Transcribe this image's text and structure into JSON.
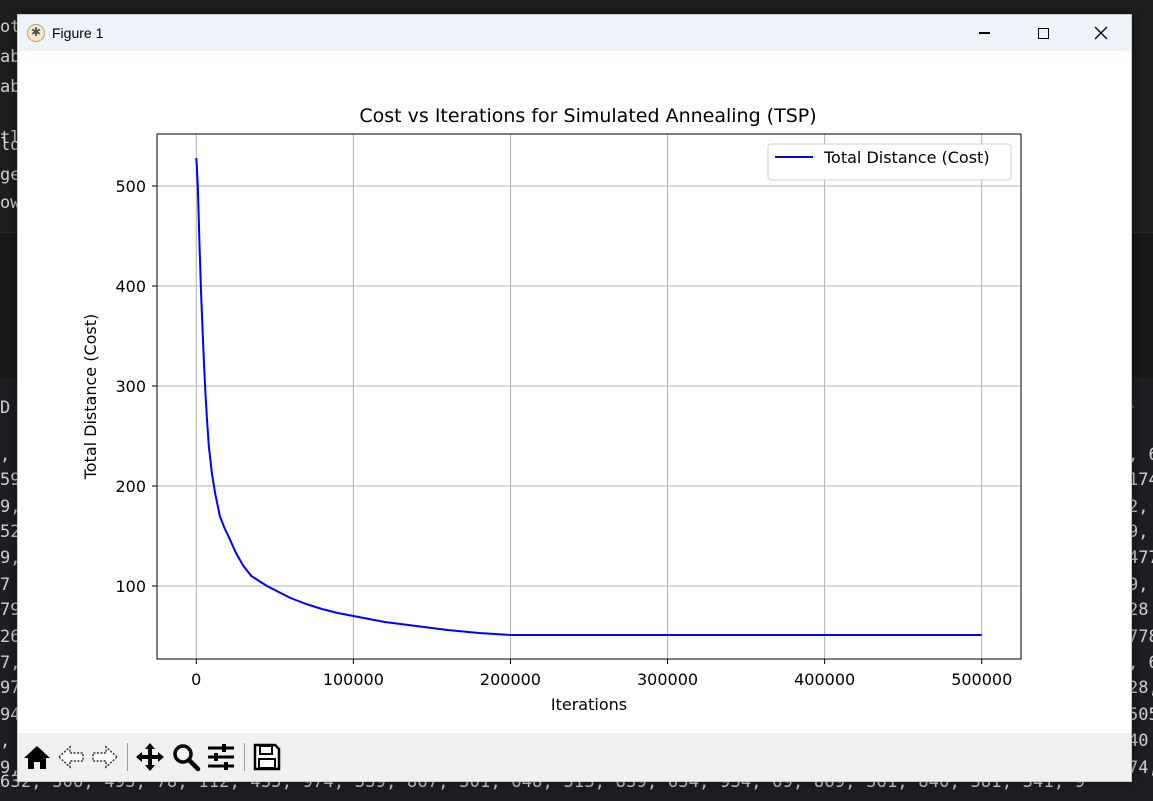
{
  "window": {
    "title": "Figure 1"
  },
  "background": {
    "left_fragments": [
      "ot",
      "ab",
      "ab",
      "tl",
      "ld",
      "ge",
      "ow",
      "D",
      ",",
      "59",
      "9,",
      "52",
      "9,",
      "7",
      "79",
      "26",
      "7,",
      "97",
      "94",
      ",",
      "9,"
    ],
    "right_fragments": [
      ", 6",
      "174",
      "2,",
      "9,",
      "477",
      "9,",
      "28",
      "778",
      ", 6",
      "28,",
      "505",
      "40",
      "74,"
    ],
    "bottom_line": "632, 306, 493, 78, 112, 435, 974, 339, 867, 301, 648, 313, 839, 634, 934, 69, 869, 361, 840, 381, 341, 9"
  },
  "toolbar": {
    "home": "home-icon",
    "back": "back-arrow-icon",
    "forward": "forward-arrow-icon",
    "pan": "pan-icon",
    "zoom": "zoom-icon",
    "configure": "configure-subplots-icon",
    "save": "save-icon"
  },
  "chart_data": {
    "type": "line",
    "title": "Cost vs Iterations for Simulated Annealing (TSP)",
    "xlabel": "Iterations",
    "ylabel": "Total Distance (Cost)",
    "xlim": [
      -25000,
      525000
    ],
    "ylim": [
      27,
      552
    ],
    "xticks": [
      0,
      100000,
      200000,
      300000,
      400000,
      500000
    ],
    "yticks": [
      100,
      200,
      300,
      400,
      500
    ],
    "grid": true,
    "legend": "top-right",
    "series": [
      {
        "name": "Total Distance (Cost)",
        "color": "#0000ff",
        "x": [
          0,
          300,
          1000,
          2000,
          3000,
          4000,
          5000,
          6000,
          7000,
          8000,
          10000,
          12000,
          15000,
          18000,
          21000,
          25000,
          30000,
          35000,
          40000,
          45000,
          50000,
          60000,
          70000,
          80000,
          90000,
          100000,
          110000,
          120000,
          140000,
          160000,
          180000,
          200000,
          205000,
          300000,
          400000,
          500000
        ],
        "y": [
          528,
          522,
          500,
          445,
          395,
          355,
          320,
          288,
          262,
          240,
          212,
          193,
          170,
          158,
          148,
          134,
          120,
          110,
          105,
          100,
          96,
          88,
          82,
          77,
          73,
          70,
          67,
          64,
          60,
          56,
          53,
          51,
          51,
          51,
          51,
          51
        ]
      }
    ]
  }
}
